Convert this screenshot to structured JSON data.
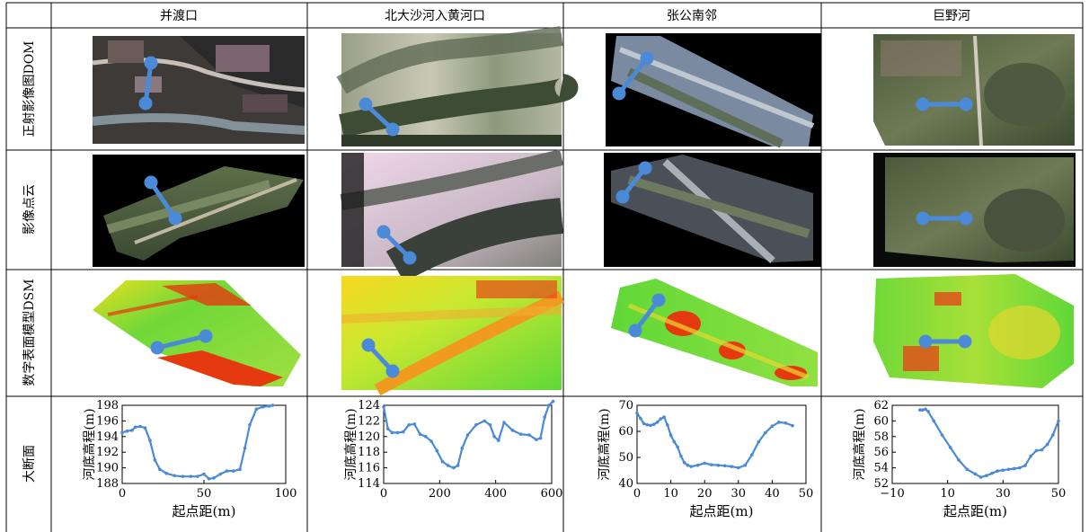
{
  "columns": [
    "并渡口",
    "北大沙河入黄河口",
    "张公南邻",
    "巨野河"
  ],
  "rows": [
    "正射影像图DOM",
    "影像点云",
    "数字表面模型DSM",
    "大断面"
  ],
  "colors": {
    "marker": "#4a8ad8",
    "curve": "#4a8ad8",
    "dsm_high": "#e53a10",
    "dsm_mid": "#f0e020",
    "dsm_low": "#50d030"
  },
  "chart_data": [
    {
      "type": "line",
      "site": "并渡口",
      "xlabel": "起点距(m)",
      "ylabel": "河底高程(m)",
      "xlim": [
        0,
        100
      ],
      "ylim": [
        188,
        198
      ],
      "xticks": [
        "0",
        "50",
        "100"
      ],
      "yticks": [
        "188",
        "190",
        "192",
        "194",
        "196",
        "198"
      ],
      "x": [
        0,
        3,
        6,
        8,
        11,
        14,
        17,
        20,
        23,
        27,
        32,
        37,
        42,
        46,
        50,
        53,
        56,
        60,
        64,
        68,
        72,
        75,
        78,
        82,
        86,
        90,
        92
      ],
      "y": [
        194.5,
        194.7,
        194.8,
        195.2,
        195.3,
        195.1,
        193.5,
        191.0,
        189.8,
        189.3,
        189.0,
        188.9,
        188.9,
        188.9,
        189.2,
        188.6,
        188.7,
        189.2,
        189.6,
        189.6,
        189.8,
        192.5,
        195.5,
        197.5,
        197.8,
        197.9,
        198.0
      ]
    },
    {
      "type": "line",
      "site": "北大沙河入黄河口",
      "xlabel": "",
      "ylabel": "河底高程(m)",
      "xlim": [
        0,
        600
      ],
      "ylim": [
        114,
        124
      ],
      "xticks": [
        "0",
        "200",
        "400",
        "600"
      ],
      "yticks": [
        "114",
        "116",
        "118",
        "120",
        "122",
        "124"
      ],
      "x": [
        0,
        15,
        30,
        50,
        70,
        90,
        110,
        130,
        150,
        170,
        190,
        210,
        230,
        250,
        265,
        280,
        300,
        330,
        360,
        380,
        395,
        410,
        430,
        460,
        490,
        520,
        545,
        560,
        575,
        590,
        605
      ],
      "y": [
        123.8,
        121.0,
        120.5,
        120.5,
        120.6,
        121.5,
        121.6,
        120.3,
        120.0,
        119.4,
        118.2,
        116.8,
        116.3,
        116.0,
        116.3,
        118.5,
        120.2,
        121.5,
        122.0,
        121.5,
        120.0,
        119.5,
        121.8,
        120.8,
        120.3,
        120.2,
        119.6,
        119.8,
        122.5,
        124.0,
        124.5
      ]
    },
    {
      "type": "line",
      "site": "张公南邻",
      "xlabel": "起点距(m)",
      "ylabel": "河底高程(m)",
      "xlim": [
        0,
        50
      ],
      "ylim": [
        40,
        70
      ],
      "xticks": [
        "0",
        "10",
        "20",
        "30",
        "40",
        "50"
      ],
      "yticks": [
        "40",
        "50",
        "60",
        "70"
      ],
      "x": [
        0,
        1,
        2,
        3,
        4,
        5,
        6,
        7,
        8,
        9,
        10,
        11,
        12,
        13,
        14,
        15,
        16,
        18,
        20,
        22,
        24,
        26,
        28,
        30,
        32,
        34,
        36,
        38,
        40,
        42,
        44,
        46
      ],
      "y": [
        67.0,
        65.0,
        63.0,
        62.5,
        62.3,
        62.7,
        63.5,
        64.8,
        65.5,
        62.5,
        58.5,
        56.0,
        54.0,
        50.5,
        48.0,
        47.0,
        46.5,
        47.0,
        47.8,
        47.2,
        47.0,
        46.8,
        46.5,
        46.0,
        47.0,
        51.0,
        56.0,
        59.5,
        62.0,
        63.5,
        63.2,
        62.2
      ]
    },
    {
      "type": "line",
      "site": "巨野河",
      "xlabel": "起点距(m)",
      "ylabel": "河底高程(m)",
      "xlim": [
        -10,
        50
      ],
      "ylim": [
        52,
        62
      ],
      "xticks": [
        "−10",
        "10",
        "30",
        "50"
      ],
      "yticks": [
        "52",
        "54",
        "56",
        "58",
        "60",
        "62"
      ],
      "x": [
        0,
        1,
        2,
        3,
        5,
        8,
        11,
        14,
        17,
        20,
        22,
        24,
        26,
        28,
        30,
        32,
        34,
        36,
        38,
        40,
        42,
        44,
        46,
        48,
        50
      ],
      "y": [
        61.4,
        61.4,
        61.5,
        61.2,
        60.0,
        58.2,
        56.6,
        55.0,
        53.8,
        53.2,
        52.8,
        53.0,
        53.3,
        53.6,
        53.7,
        53.8,
        53.9,
        54.0,
        54.3,
        55.5,
        56.2,
        56.3,
        57.0,
        58.2,
        60.0
      ]
    }
  ]
}
